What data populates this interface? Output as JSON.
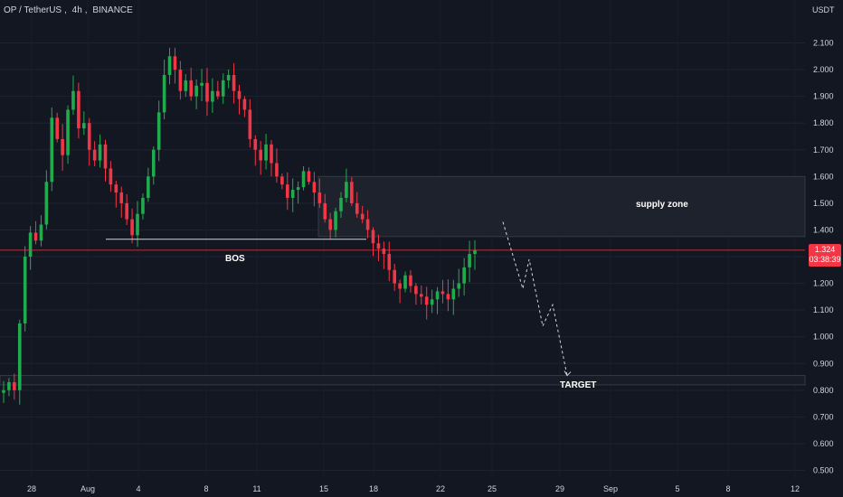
{
  "header": {
    "pair": "OP / TetherUS",
    "interval": "4h",
    "exchange": "BINANCE"
  },
  "axis": {
    "unit": "USDT"
  },
  "last_price": {
    "value": "1.324",
    "countdown": "03:38:39"
  },
  "annotations": {
    "supply_zone": "supply zone",
    "bos": "BOS",
    "target": "TARGET"
  },
  "colors": {
    "background": "#131722",
    "up": "#22ab4e",
    "down": "#f23645",
    "text": "#d1d4dc",
    "price_line": "#f23645",
    "zone": "#1e222d"
  },
  "chart_data": {
    "type": "candlestick",
    "symbol": "OP / TetherUS",
    "timeframe": "4h",
    "ylim": [
      0.45,
      2.23
    ],
    "y_ticks": [
      0.5,
      0.6,
      0.7,
      0.8,
      0.9,
      1.0,
      1.1,
      1.2,
      1.3,
      1.4,
      1.5,
      1.6,
      1.7,
      1.8,
      1.9,
      2.0,
      2.1
    ],
    "x_ticks": [
      "28",
      "Aug",
      "4",
      "8",
      "11",
      "15",
      "18",
      "22",
      "25",
      "29",
      "Sep",
      "5",
      "8",
      "12"
    ],
    "last_price": 1.324,
    "supply_zone": [
      1.375,
      1.6
    ],
    "bos_level": 1.365,
    "target_zone": [
      0.82,
      0.855
    ],
    "projection": [
      1.43,
      1.18,
      1.29,
      1.04,
      1.12,
      0.855
    ],
    "closes": [
      0.8,
      0.83,
      0.8,
      1.05,
      1.3,
      1.39,
      1.36,
      1.42,
      1.58,
      1.82,
      1.74,
      1.68,
      1.85,
      1.92,
      1.78,
      1.8,
      1.7,
      1.66,
      1.72,
      1.63,
      1.57,
      1.54,
      1.5,
      1.44,
      1.38,
      1.46,
      1.52,
      1.6,
      1.7,
      1.84,
      1.98,
      2.05,
      2.0,
      1.92,
      1.96,
      1.9,
      1.94,
      1.95,
      1.88,
      1.92,
      1.9,
      1.96,
      1.98,
      1.92,
      1.89,
      1.85,
      1.74,
      1.7,
      1.66,
      1.72,
      1.65,
      1.6,
      1.57,
      1.52,
      1.55,
      1.56,
      1.62,
      1.58,
      1.54,
      1.5,
      1.44,
      1.4,
      1.47,
      1.52,
      1.58,
      1.5,
      1.46,
      1.44,
      1.4,
      1.35,
      1.33,
      1.31,
      1.25,
      1.2,
      1.18,
      1.23,
      1.19,
      1.16,
      1.15,
      1.12,
      1.14,
      1.17,
      1.16,
      1.14,
      1.18,
      1.2,
      1.26,
      1.31,
      1.324
    ]
  }
}
